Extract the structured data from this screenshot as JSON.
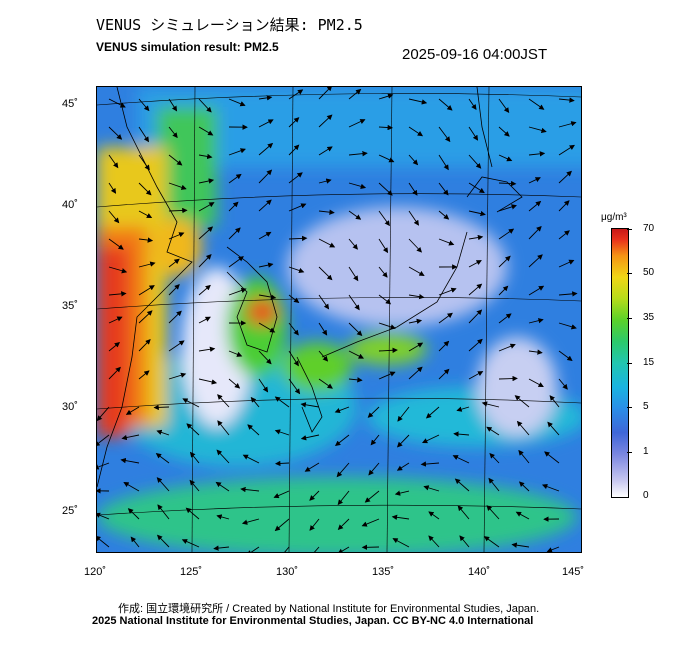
{
  "header": {
    "title_jp": "VENUS シミュレーション結果: PM2.5",
    "title_en": "VENUS simulation result: PM2.5",
    "timestamp": "2025-09-16 04:00JST"
  },
  "map": {
    "lat_labels": [
      "45˚",
      "40˚",
      "35˚",
      "30˚",
      "25˚"
    ],
    "lon_labels": [
      "120˚",
      "125˚",
      "130˚",
      "135˚",
      "140˚",
      "145˚"
    ],
    "field": "PM2.5 concentration"
  },
  "colorbar": {
    "unit": "μg/m³",
    "ticks": [
      "70",
      "50",
      "35",
      "15",
      "5",
      "1",
      "0"
    ],
    "colors": {
      "low": "#ffffff",
      "light_blue": "#3f66d8",
      "cyan": "#19b4e0",
      "green": "#2cc96b",
      "yellow": "#f0d616",
      "orange": "#f59414",
      "red": "#c81818"
    }
  },
  "footer": {
    "credit_line1": "作成: 国立環境研究所 / Created by National Institute for Environmental Studies, Japan.",
    "credit_line2": "2025 National Institute for Environmental Studies, Japan. CC BY-NC 4.0 International"
  }
}
